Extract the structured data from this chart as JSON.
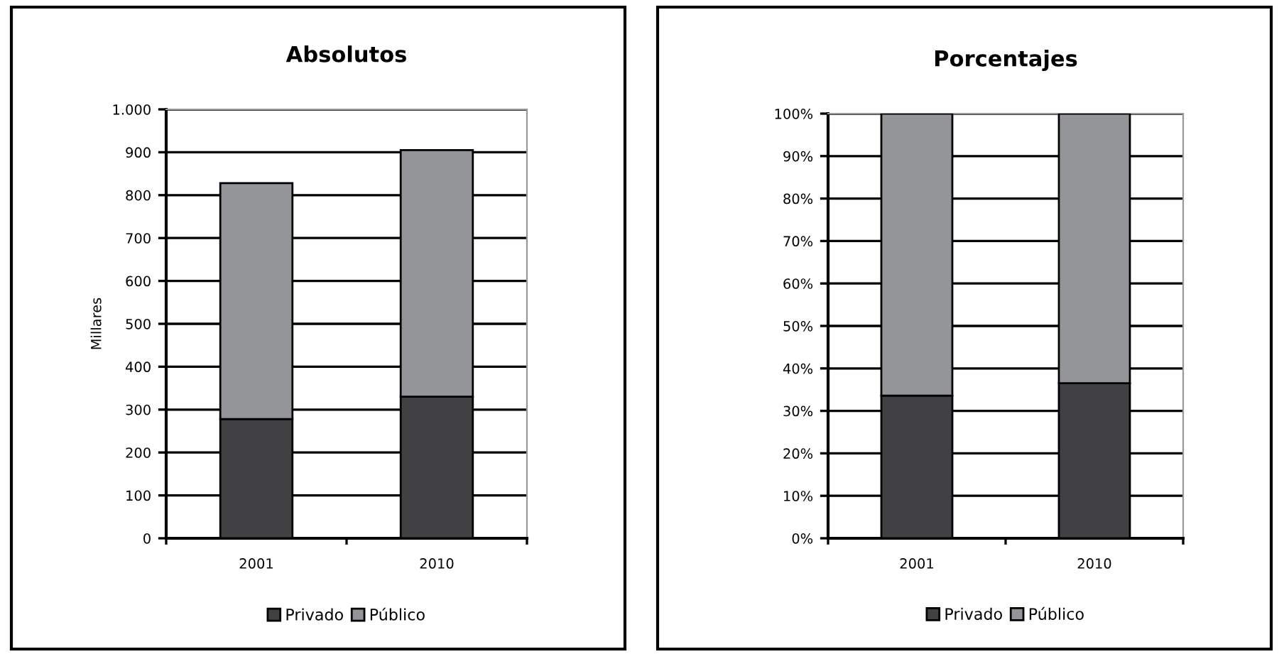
{
  "chart_data": [
    {
      "type": "bar",
      "title": "Absolutos",
      "ylabel": "Millares",
      "categories": [
        "2001",
        "2010"
      ],
      "stacked": true,
      "series": [
        {
          "name": "Privado",
          "color": "#414143",
          "values": [
            278,
            330
          ]
        },
        {
          "name": "Público",
          "color": "#939598",
          "values": [
            550,
            575
          ]
        }
      ],
      "ylim": [
        0,
        1000
      ],
      "yticks": [
        0,
        100,
        200,
        300,
        400,
        500,
        600,
        700,
        800,
        900,
        {
          "value": 1000,
          "label": "1.000"
        }
      ],
      "grid": "y",
      "legend": "bottom"
    },
    {
      "type": "bar",
      "title": "Porcentajes",
      "categories": [
        "2001",
        "2010"
      ],
      "stacked": true,
      "series": [
        {
          "name": "Privado",
          "color": "#414143",
          "values": [
            33.6,
            36.5
          ]
        },
        {
          "name": "Público",
          "color": "#939598",
          "values": [
            66.4,
            63.5
          ]
        }
      ],
      "ylim": [
        0,
        100
      ],
      "yticks": [
        {
          "value": 0,
          "label": "0%"
        },
        {
          "value": 10,
          "label": "10%"
        },
        {
          "value": 20,
          "label": "20%"
        },
        {
          "value": 30,
          "label": "30%"
        },
        {
          "value": 40,
          "label": "40%"
        },
        {
          "value": 50,
          "label": "50%"
        },
        {
          "value": 60,
          "label": "60%"
        },
        {
          "value": 70,
          "label": "70%"
        },
        {
          "value": 80,
          "label": "80%"
        },
        {
          "value": 90,
          "label": "90%"
        },
        {
          "value": 100,
          "label": "100%"
        }
      ],
      "grid": "y",
      "legend": "bottom"
    }
  ]
}
